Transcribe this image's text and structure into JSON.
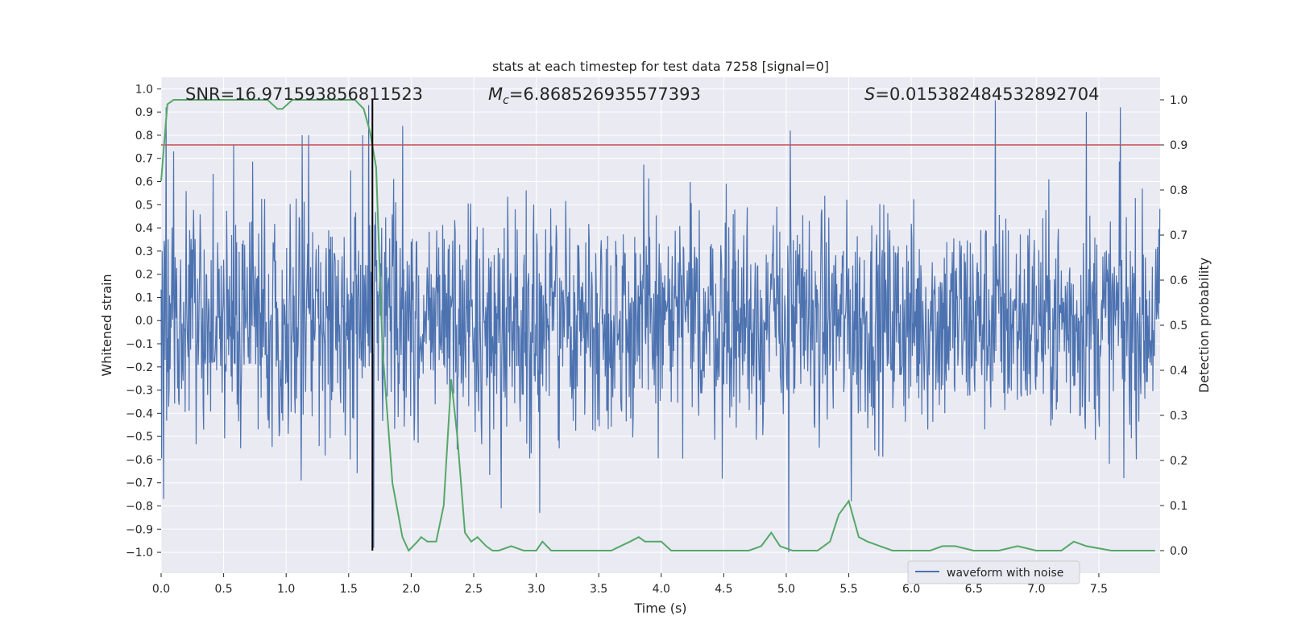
{
  "chart_data": {
    "type": "line",
    "title": "stats at each timestep for test data 7258 [signal=0]",
    "xlabel": "Time (s)",
    "ylabel_left": "Whitened strain",
    "ylabel_right": "Detection probability",
    "xlim": [
      0.0,
      7.99
    ],
    "ylim_left": [
      -1.09,
      1.05
    ],
    "ylim_right": [
      -0.05,
      1.05
    ],
    "x_ticks": [
      0.0,
      0.5,
      1.0,
      1.5,
      2.0,
      2.5,
      3.0,
      3.5,
      4.0,
      4.5,
      5.0,
      5.5,
      6.0,
      6.5,
      7.0,
      7.5
    ],
    "x_tick_labels": [
      "0.0",
      "0.5",
      "1.0",
      "1.5",
      "2.0",
      "2.5",
      "3.0",
      "3.5",
      "4.0",
      "4.5",
      "5.0",
      "5.5",
      "6.0",
      "6.5",
      "7.0",
      "7.5"
    ],
    "y_left_ticks": [
      -1.0,
      -0.9,
      -0.8,
      -0.7,
      -0.6,
      -0.5,
      -0.4,
      -0.3,
      -0.2,
      -0.1,
      0.0,
      0.1,
      0.2,
      0.3,
      0.4,
      0.5,
      0.6,
      0.7,
      0.8,
      0.9,
      1.0
    ],
    "y_left_tick_labels": [
      "−1.0",
      "−0.9",
      "−0.8",
      "−0.7",
      "−0.6",
      "−0.5",
      "−0.4",
      "−0.3",
      "−0.2",
      "−0.1",
      "0.0",
      "0.1",
      "0.2",
      "0.3",
      "0.4",
      "0.5",
      "0.6",
      "0.7",
      "0.8",
      "0.9",
      "1.0"
    ],
    "y_right_ticks": [
      0.0,
      0.1,
      0.2,
      0.3,
      0.4,
      0.5,
      0.6,
      0.7,
      0.8,
      0.9,
      1.0
    ],
    "y_right_tick_labels": [
      "0.0",
      "0.1",
      "0.2",
      "0.3",
      "0.4",
      "0.5",
      "0.6",
      "0.7",
      "0.8",
      "0.9",
      "1.0"
    ],
    "annotations": {
      "snr": "SNR=16.971593856811523",
      "mc_symbol": "M",
      "mc_sub": "c",
      "mc_value": "=6.868526935577393",
      "s_symbol": "S",
      "s_value": "=0.015382484532892704"
    },
    "threshold_right": 0.9,
    "peak_time": 1.69,
    "legend": {
      "label": "waveform with noise",
      "location": "lower-right"
    },
    "waveform": {
      "name": "waveform with noise",
      "sample_rate_hz": 250,
      "duration_s": 7.99,
      "envelope_typical": 0.45,
      "spikes": [
        {
          "t": 0.02,
          "v": -0.77
        },
        {
          "t": 0.04,
          "v": 0.92
        },
        {
          "t": 0.1,
          "v": 0.73
        },
        {
          "t": 0.58,
          "v": 0.76
        },
        {
          "t": 1.12,
          "v": -0.69
        },
        {
          "t": 1.13,
          "v": 0.8
        },
        {
          "t": 1.18,
          "v": 0.8
        },
        {
          "t": 1.61,
          "v": 0.8
        },
        {
          "t": 1.66,
          "v": 0.93
        },
        {
          "t": 1.7,
          "v": -0.98
        },
        {
          "t": 1.93,
          "v": 0.84
        },
        {
          "t": 2.72,
          "v": -0.81
        },
        {
          "t": 3.03,
          "v": -0.83
        },
        {
          "t": 5.02,
          "v": -1.0
        },
        {
          "t": 5.03,
          "v": 0.82
        },
        {
          "t": 5.52,
          "v": -0.78
        },
        {
          "t": 6.67,
          "v": 0.95
        },
        {
          "t": 7.4,
          "v": 0.9
        },
        {
          "t": 7.67,
          "v": 0.92
        },
        {
          "t": 7.7,
          "v": -0.68
        }
      ]
    },
    "detection_probability": {
      "name": "detection probability",
      "x": [
        0.0,
        0.05,
        0.1,
        0.2,
        0.5,
        0.85,
        0.93,
        0.97,
        1.05,
        1.5,
        1.55,
        1.62,
        1.67,
        1.72,
        1.77,
        1.85,
        1.93,
        1.98,
        2.05,
        2.08,
        2.13,
        2.2,
        2.26,
        2.32,
        2.37,
        2.43,
        2.48,
        2.53,
        2.6,
        2.65,
        2.7,
        2.8,
        2.9,
        3.0,
        3.05,
        3.12,
        3.2,
        3.3,
        3.4,
        3.6,
        3.75,
        3.82,
        3.87,
        3.92,
        4.0,
        4.08,
        4.15,
        4.3,
        4.5,
        4.7,
        4.8,
        4.88,
        4.95,
        5.05,
        5.15,
        5.25,
        5.35,
        5.42,
        5.5,
        5.58,
        5.65,
        5.75,
        5.85,
        6.0,
        6.15,
        6.25,
        6.35,
        6.5,
        6.7,
        6.85,
        7.0,
        7.2,
        7.3,
        7.4,
        7.6,
        7.8,
        7.95
      ],
      "y": [
        0.82,
        0.99,
        1.0,
        1.0,
        1.0,
        1.0,
        0.98,
        0.98,
        1.0,
        1.0,
        1.0,
        0.98,
        0.93,
        0.85,
        0.45,
        0.15,
        0.03,
        0.0,
        0.02,
        0.03,
        0.02,
        0.02,
        0.1,
        0.38,
        0.25,
        0.04,
        0.02,
        0.03,
        0.01,
        0.0,
        0.0,
        0.01,
        0.0,
        0.0,
        0.02,
        0.0,
        0.0,
        0.0,
        0.0,
        0.0,
        0.02,
        0.03,
        0.02,
        0.02,
        0.02,
        0.0,
        0.0,
        0.0,
        0.0,
        0.0,
        0.01,
        0.04,
        0.01,
        0.0,
        0.0,
        0.0,
        0.02,
        0.08,
        0.11,
        0.03,
        0.02,
        0.01,
        0.0,
        0.0,
        0.0,
        0.01,
        0.01,
        0.0,
        0.0,
        0.01,
        0.0,
        0.0,
        0.02,
        0.01,
        0.0,
        0.0,
        0.0
      ]
    }
  },
  "colors": {
    "background": "#ffffff",
    "axes_face": "#eaeaf2",
    "grid": "#ffffff",
    "waveform": "#4c72b0",
    "probability": "#55a868",
    "threshold": "#c44e52",
    "marker": "#000000"
  }
}
